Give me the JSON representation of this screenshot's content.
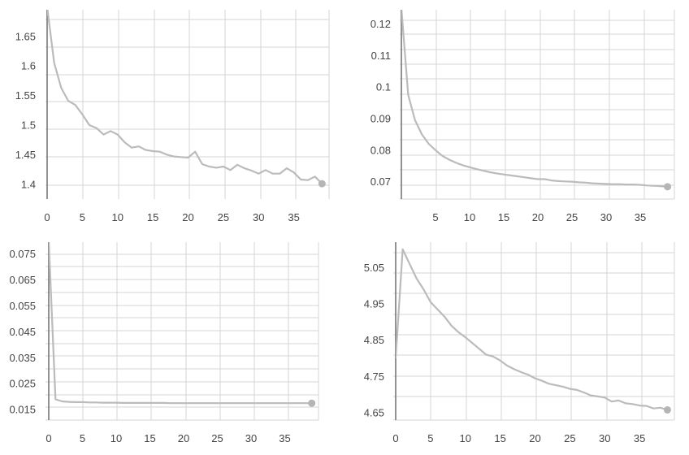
{
  "chart_data": [
    {
      "type": "line",
      "title": "",
      "xlabel": "",
      "ylabel": "",
      "xlim": [
        -0.5,
        40
      ],
      "ylim": [
        1.375,
        1.695
      ],
      "x_ticks": [
        "0",
        "5",
        "10",
        "15",
        "20",
        "25",
        "30",
        "35"
      ],
      "y_ticks": [
        "1.4",
        "1.45",
        "1.5",
        "1.55",
        "1.6",
        "1.65"
      ],
      "grid": true,
      "line_color": "#bbbbbb",
      "series": [
        {
          "x": [
            0,
            1,
            2,
            3,
            4,
            5,
            6,
            7,
            8,
            9,
            10,
            11,
            12,
            13,
            14,
            15,
            16,
            17,
            18,
            19,
            20,
            21,
            22,
            23,
            24,
            25,
            26,
            27,
            28,
            29,
            30,
            31,
            32,
            33,
            34,
            35,
            36,
            37,
            38,
            39
          ],
          "values": [
            1.7,
            1.605,
            1.563,
            1.541,
            1.534,
            1.518,
            1.5,
            1.495,
            1.484,
            1.49,
            1.484,
            1.471,
            1.462,
            1.464,
            1.458,
            1.456,
            1.455,
            1.45,
            1.447,
            1.446,
            1.445,
            1.455,
            1.434,
            1.43,
            1.428,
            1.43,
            1.424,
            1.433,
            1.427,
            1.423,
            1.418,
            1.424,
            1.418,
            1.418,
            1.427,
            1.42,
            1.408,
            1.407,
            1.413,
            1.401
          ]
        }
      ]
    },
    {
      "type": "line",
      "title": "",
      "xlabel": "",
      "ylabel": "",
      "xlim": [
        -0.5,
        40
      ],
      "ylim": [
        0.0645,
        0.1245
      ],
      "x_ticks": [
        "5",
        "10",
        "15",
        "20",
        "25",
        "30",
        "35"
      ],
      "y_ticks": [
        "0.07",
        "0.08",
        "0.09",
        "0.1",
        "0.11",
        "0.12"
      ],
      "grid": true,
      "line_color": "#bbbbbb",
      "series": [
        {
          "x": [
            0,
            1,
            2,
            3,
            4,
            5,
            6,
            7,
            8,
            9,
            10,
            11,
            12,
            13,
            14,
            15,
            16,
            17,
            18,
            19,
            20,
            21,
            22,
            23,
            24,
            25,
            26,
            27,
            28,
            29,
            30,
            31,
            32,
            33,
            34,
            35,
            36,
            37,
            38,
            39
          ],
          "values": [
            0.125,
            0.0975,
            0.0895,
            0.085,
            0.082,
            0.08,
            0.0782,
            0.077,
            0.076,
            0.0752,
            0.0746,
            0.074,
            0.0735,
            0.073,
            0.0726,
            0.0723,
            0.072,
            0.0717,
            0.0714,
            0.0711,
            0.0708,
            0.0708,
            0.0704,
            0.0702,
            0.0701,
            0.07,
            0.0698,
            0.0697,
            0.0695,
            0.0694,
            0.0693,
            0.0692,
            0.0692,
            0.0691,
            0.0691,
            0.069,
            0.0688,
            0.0687,
            0.0686,
            0.0684
          ]
        }
      ]
    },
    {
      "type": "line",
      "title": "",
      "xlabel": "",
      "ylabel": "",
      "xlim": [
        -0.5,
        40
      ],
      "ylim": [
        0.011,
        0.0795
      ],
      "x_ticks": [
        "0",
        "5",
        "10",
        "15",
        "20",
        "25",
        "30",
        "35"
      ],
      "y_ticks": [
        "0.015",
        "0.025",
        "0.035",
        "0.045",
        "0.055",
        "0.065",
        "0.075"
      ],
      "grid": true,
      "line_color": "#bbbbbb",
      "series": [
        {
          "x": [
            0,
            1,
            2,
            3,
            4,
            5,
            6,
            7,
            8,
            9,
            10,
            11,
            12,
            13,
            14,
            15,
            16,
            17,
            18,
            19,
            20,
            21,
            22,
            23,
            24,
            25,
            26,
            27,
            28,
            29,
            30,
            31,
            32,
            33,
            34,
            35,
            36,
            37,
            38,
            39
          ],
          "values": [
            0.08,
            0.019,
            0.0182,
            0.018,
            0.0179,
            0.0179,
            0.0178,
            0.0178,
            0.0177,
            0.0177,
            0.0177,
            0.0176,
            0.0176,
            0.0176,
            0.0176,
            0.0176,
            0.0176,
            0.0176,
            0.0175,
            0.0175,
            0.0175,
            0.0175,
            0.0175,
            0.0175,
            0.0175,
            0.0175,
            0.0175,
            0.0175,
            0.0175,
            0.0175,
            0.0175,
            0.0175,
            0.0175,
            0.0175,
            0.0175,
            0.0175,
            0.0175,
            0.0175,
            0.0175,
            0.0175
          ]
        }
      ]
    },
    {
      "type": "line",
      "title": "",
      "xlabel": "",
      "ylabel": "",
      "xlim": [
        -0.5,
        40
      ],
      "ylim": [
        4.63,
        5.12
      ],
      "x_ticks": [
        "0",
        "5",
        "10",
        "15",
        "20",
        "25",
        "30",
        "35"
      ],
      "y_ticks": [
        "4.65",
        "4.75",
        "4.85",
        "4.95",
        "5.05"
      ],
      "grid": true,
      "line_color": "#bbbbbb",
      "series": [
        {
          "x": [
            0,
            1,
            2,
            3,
            4,
            5,
            6,
            7,
            8,
            9,
            10,
            11,
            12,
            13,
            14,
            15,
            16,
            17,
            18,
            19,
            20,
            21,
            22,
            23,
            24,
            25,
            26,
            27,
            28,
            29,
            30,
            31,
            32,
            33,
            34,
            35,
            36,
            37,
            38,
            39
          ],
          "values": [
            4.8,
            5.1,
            5.06,
            5.02,
            4.99,
            4.955,
            4.935,
            4.915,
            4.89,
            4.872,
            4.858,
            4.842,
            4.826,
            4.81,
            4.805,
            4.794,
            4.78,
            4.77,
            4.762,
            4.755,
            4.745,
            4.738,
            4.73,
            4.726,
            4.722,
            4.716,
            4.713,
            4.706,
            4.698,
            4.695,
            4.692,
            4.681,
            4.684,
            4.676,
            4.674,
            4.67,
            4.669,
            4.662,
            4.664,
            4.658
          ]
        }
      ]
    }
  ]
}
